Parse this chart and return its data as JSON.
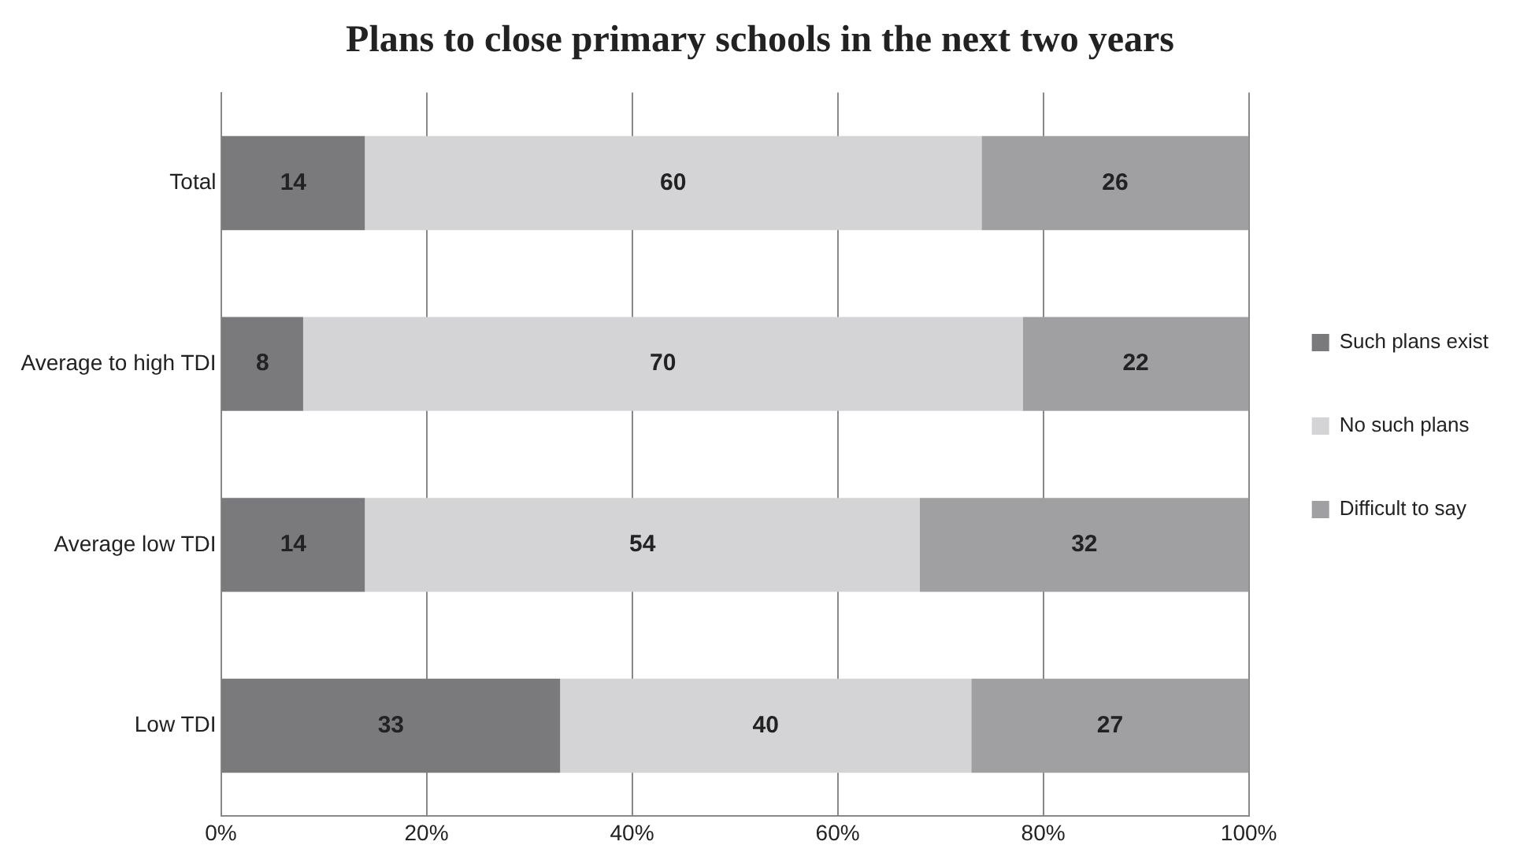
{
  "chart_data": {
    "type": "bar",
    "orientation": "horizontal",
    "stacked": true,
    "title": "Plans to close primary schools in the next two years",
    "categories": [
      "Total",
      "Average to high TDI",
      "Average low TDI",
      "Low TDI"
    ],
    "series": [
      {
        "name": "Such plans exist",
        "color": "#7a7a7c",
        "values": [
          14,
          8,
          14,
          33
        ]
      },
      {
        "name": "No such plans",
        "color": "#d4d4d6",
        "values": [
          60,
          70,
          54,
          40
        ]
      },
      {
        "name": "Difficult to say",
        "color": "#a0a0a2",
        "values": [
          26,
          22,
          32,
          27
        ]
      }
    ],
    "xlim": [
      0,
      100
    ],
    "xticks": [
      {
        "value": 0,
        "label": "0%"
      },
      {
        "value": 20,
        "label": "20%"
      },
      {
        "value": 40,
        "label": "40%"
      },
      {
        "value": 60,
        "label": "60%"
      },
      {
        "value": 80,
        "label": "80%"
      },
      {
        "value": 100,
        "label": "100%"
      }
    ],
    "grid": "x",
    "legend": "right",
    "data_labels": true
  }
}
